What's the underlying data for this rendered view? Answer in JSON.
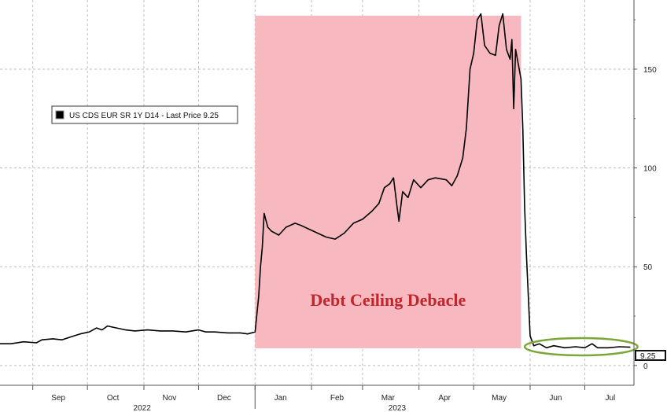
{
  "chart_data": {
    "type": "line",
    "title": "",
    "xlabel": "",
    "ylabel": "",
    "ylim": [
      -10,
      185
    ],
    "x_range": [
      "2022-08-14",
      "2023-07-28"
    ],
    "y_ticks": [
      0,
      50,
      100,
      150
    ],
    "y_tick_labels": [
      "0",
      "50",
      "100",
      "150"
    ],
    "x_month_ticks": [
      {
        "date": "2022-09-15",
        "label": "Sep"
      },
      {
        "date": "2022-10-15",
        "label": "Oct"
      },
      {
        "date": "2022-11-15",
        "label": "Nov"
      },
      {
        "date": "2022-12-15",
        "label": "Dec"
      },
      {
        "date": "2023-01-15",
        "label": "Jan"
      },
      {
        "date": "2023-02-15",
        "label": "Feb"
      },
      {
        "date": "2023-03-15",
        "label": "Mar"
      },
      {
        "date": "2023-04-15",
        "label": "Apr"
      },
      {
        "date": "2023-05-15",
        "label": "May"
      },
      {
        "date": "2023-06-15",
        "label": "Jun"
      },
      {
        "date": "2023-07-15",
        "label": "Jul"
      }
    ],
    "x_year_labels": [
      {
        "date": "2022-10-31",
        "label": "2022"
      },
      {
        "date": "2023-03-20",
        "label": "2023"
      }
    ],
    "grid": true,
    "legend_position": "top-left",
    "legend_label": "US CDS EUR SR 1Y D14 - Last Price 9.25",
    "last_value": 9.25,
    "last_value_label": "9.25",
    "highlight": {
      "start": "2023-01-01",
      "end": "2023-05-27",
      "label": "Debt Ceiling Debacle",
      "color": "#f7b9bf",
      "text_color": "#c0272d"
    },
    "ellipse_highlight": {
      "start": "2023-05-29",
      "end": "2023-07-30",
      "color": "#7aa63a"
    },
    "series": [
      {
        "color": "#000000",
        "points": [
          [
            "2022-08-14",
            11
          ],
          [
            "2022-08-20",
            11
          ],
          [
            "2022-08-27",
            12
          ],
          [
            "2022-09-03",
            11.5
          ],
          [
            "2022-09-06",
            13
          ],
          [
            "2022-09-12",
            13.5
          ],
          [
            "2022-09-17",
            13
          ],
          [
            "2022-09-22",
            14.5
          ],
          [
            "2022-09-27",
            16
          ],
          [
            "2022-10-02",
            17
          ],
          [
            "2022-10-06",
            19
          ],
          [
            "2022-10-09",
            18
          ],
          [
            "2022-10-12",
            20
          ],
          [
            "2022-10-17",
            19
          ],
          [
            "2022-10-22",
            18
          ],
          [
            "2022-10-27",
            17.5
          ],
          [
            "2022-11-03",
            18
          ],
          [
            "2022-11-10",
            17.5
          ],
          [
            "2022-11-17",
            17.5
          ],
          [
            "2022-11-24",
            17
          ],
          [
            "2022-12-01",
            18
          ],
          [
            "2022-12-05",
            17
          ],
          [
            "2022-12-10",
            17
          ],
          [
            "2022-12-17",
            16.5
          ],
          [
            "2022-12-24",
            16.5
          ],
          [
            "2022-12-28",
            16
          ],
          [
            "2023-01-01",
            17
          ],
          [
            "2023-01-03",
            35
          ],
          [
            "2023-01-04",
            50
          ],
          [
            "2023-01-05",
            60
          ],
          [
            "2023-01-06",
            77
          ],
          [
            "2023-01-08",
            70
          ],
          [
            "2023-01-10",
            68
          ],
          [
            "2023-01-14",
            66
          ],
          [
            "2023-01-18",
            70
          ],
          [
            "2023-01-23",
            72
          ],
          [
            "2023-01-26",
            71
          ],
          [
            "2023-02-02",
            68
          ],
          [
            "2023-02-09",
            65
          ],
          [
            "2023-02-14",
            64
          ],
          [
            "2023-02-19",
            67
          ],
          [
            "2023-02-24",
            72
          ],
          [
            "2023-03-01",
            74
          ],
          [
            "2023-03-06",
            78
          ],
          [
            "2023-03-10",
            82
          ],
          [
            "2023-03-13",
            90
          ],
          [
            "2023-03-16",
            92
          ],
          [
            "2023-03-18",
            95
          ],
          [
            "2023-03-20",
            80
          ],
          [
            "2023-03-21",
            73
          ],
          [
            "2023-03-23",
            88
          ],
          [
            "2023-03-26",
            85
          ],
          [
            "2023-03-29",
            94
          ],
          [
            "2023-04-02",
            90
          ],
          [
            "2023-04-06",
            94
          ],
          [
            "2023-04-10",
            95
          ],
          [
            "2023-04-16",
            94
          ],
          [
            "2023-04-19",
            91
          ],
          [
            "2023-04-22",
            96
          ],
          [
            "2023-04-25",
            105
          ],
          [
            "2023-04-27",
            120
          ],
          [
            "2023-04-29",
            150
          ],
          [
            "2023-05-01",
            158
          ],
          [
            "2023-05-03",
            175
          ],
          [
            "2023-05-05",
            178
          ],
          [
            "2023-05-07",
            162
          ],
          [
            "2023-05-10",
            158
          ],
          [
            "2023-05-13",
            157
          ],
          [
            "2023-05-15",
            172
          ],
          [
            "2023-05-17",
            178
          ],
          [
            "2023-05-19",
            160
          ],
          [
            "2023-05-21",
            155
          ],
          [
            "2023-05-22",
            165
          ],
          [
            "2023-05-23",
            130
          ],
          [
            "2023-05-24",
            160
          ],
          [
            "2023-05-25",
            155
          ],
          [
            "2023-05-26",
            150
          ],
          [
            "2023-05-27",
            145
          ],
          [
            "2023-05-28",
            120
          ],
          [
            "2023-05-29",
            80
          ],
          [
            "2023-05-30",
            55
          ],
          [
            "2023-05-31",
            35
          ],
          [
            "2023-06-01",
            15
          ],
          [
            "2023-06-03",
            10
          ],
          [
            "2023-06-06",
            11
          ],
          [
            "2023-06-10",
            9
          ],
          [
            "2023-06-14",
            10
          ],
          [
            "2023-06-20",
            9
          ],
          [
            "2023-06-26",
            9.5
          ],
          [
            "2023-07-01",
            9
          ],
          [
            "2023-07-05",
            11
          ],
          [
            "2023-07-08",
            9
          ],
          [
            "2023-07-14",
            9
          ],
          [
            "2023-07-20",
            9.5
          ],
          [
            "2023-07-26",
            9.25
          ]
        ]
      }
    ]
  }
}
